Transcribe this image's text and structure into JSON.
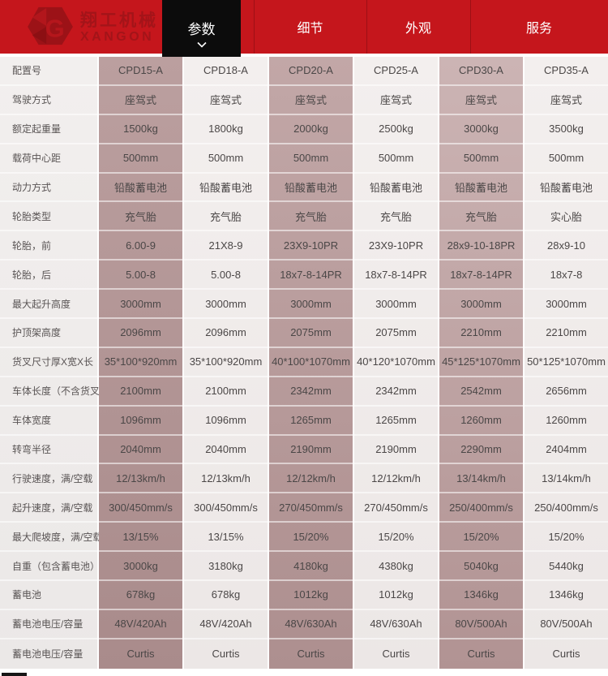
{
  "header": {
    "logo": {
      "brand_cn": "翔工机械",
      "brand_en": "XANGON"
    },
    "tabs": [
      {
        "label": "参数",
        "active": true
      },
      {
        "label": "细节",
        "active": false
      },
      {
        "label": "外观",
        "active": false
      },
      {
        "label": "服务",
        "active": false
      }
    ]
  },
  "colors": {
    "header_red": "#c5161c",
    "header_divider_red": "#9d1015",
    "logo_red": "#a31419",
    "active_tab_black": "#0c0c0c",
    "shaded_column_mauve": "#b29595",
    "light_column": "#f1edec",
    "cell_text": "#4b4747"
  },
  "table": {
    "models": [
      "CPD15-A",
      "CPD18-A",
      "CPD20-A",
      "CPD25-A",
      "CPD30-A",
      "CPD35-A"
    ],
    "rows": [
      {
        "label": "配置号",
        "values": [
          "CPD15-A",
          "CPD18-A",
          "CPD20-A",
          "CPD25-A",
          "CPD30-A",
          "CPD35-A"
        ]
      },
      {
        "label": "驾驶方式",
        "values": [
          "座驾式",
          "座驾式",
          "座驾式",
          "座驾式",
          "座驾式",
          "座驾式"
        ]
      },
      {
        "label": "额定起重量",
        "values": [
          "1500kg",
          "1800kg",
          "2000kg",
          "2500kg",
          "3000kg",
          "3500kg"
        ]
      },
      {
        "label": "载荷中心距",
        "values": [
          "500mm",
          "500mm",
          "500mm",
          "500mm",
          "500mm",
          "500mm"
        ]
      },
      {
        "label": "动力方式",
        "values": [
          "铅酸蓄电池",
          "铅酸蓄电池",
          "铅酸蓄电池",
          "铅酸蓄电池",
          "铅酸蓄电池",
          "铅酸蓄电池"
        ]
      },
      {
        "label": "轮胎类型",
        "values": [
          "充气胎",
          "充气胎",
          "充气胎",
          "充气胎",
          "充气胎",
          "实心胎"
        ]
      },
      {
        "label": "轮胎，前",
        "values": [
          "6.00-9",
          "21X8-9",
          "23X9-10PR",
          "23X9-10PR",
          "28x9-10-18PR",
          "28x9-10"
        ]
      },
      {
        "label": "轮胎，后",
        "values": [
          "5.00-8",
          "5.00-8",
          "18x7-8-14PR",
          "18x7-8-14PR",
          "18x7-8-14PR",
          "18x7-8"
        ]
      },
      {
        "label": "最大起升高度",
        "values": [
          "3000mm",
          "3000mm",
          "3000mm",
          "3000mm",
          "3000mm",
          "3000mm"
        ]
      },
      {
        "label": "护顶架高度",
        "values": [
          "2096mm",
          "2096mm",
          "2075mm",
          "2075mm",
          "2210mm",
          "2210mm"
        ]
      },
      {
        "label": "货叉尺寸厚X宽X长",
        "values": [
          "35*100*920mm",
          "35*100*920mm",
          "40*100*1070mm",
          "40*120*1070mm",
          "45*125*1070mm",
          "50*125*1070mm"
        ]
      },
      {
        "label": "车体长度（不含货叉）",
        "values": [
          "2100mm",
          "2100mm",
          "2342mm",
          "2342mm",
          "2542mm",
          "2656mm"
        ]
      },
      {
        "label": "车体宽度",
        "values": [
          "1096mm",
          "1096mm",
          "1265mm",
          "1265mm",
          "1260mm",
          "1260mm"
        ]
      },
      {
        "label": "转弯半径",
        "values": [
          "2040mm",
          "2040mm",
          "2190mm",
          "2190mm",
          "2290mm",
          "2404mm"
        ]
      },
      {
        "label": "行驶速度，满/空载",
        "values": [
          "12/13km/h",
          "12/13km/h",
          "12/12km/h",
          "12/12km/h",
          "13/14km/h",
          "13/14km/h"
        ]
      },
      {
        "label": "起升速度，满/空载",
        "values": [
          "300/450mm/s",
          "300/450mm/s",
          "270/450mm/s",
          "270/450mm/s",
          "250/400mm/s",
          "250/400mm/s"
        ]
      },
      {
        "label": "最大爬坡度，满/空载",
        "values": [
          "13/15%",
          "13/15%",
          "15/20%",
          "15/20%",
          "15/20%",
          "15/20%"
        ]
      },
      {
        "label": "自重（包含蓄电池）",
        "values": [
          "3000kg",
          "3180kg",
          "4180kg",
          "4380kg",
          "5040kg",
          "5440kg"
        ]
      },
      {
        "label": "蓄电池",
        "values": [
          "678kg",
          "678kg",
          "1012kg",
          "1012kg",
          "1346kg",
          "1346kg"
        ]
      },
      {
        "label": "蓄电池电压/容量",
        "values": [
          "48V/420Ah",
          "48V/420Ah",
          "48V/630Ah",
          "48V/630Ah",
          "80V/500Ah",
          "80V/500Ah"
        ]
      },
      {
        "label": "蓄电池电压/容量",
        "values": [
          "Curtis",
          "Curtis",
          "Curtis",
          "Curtis",
          "Curtis",
          "Curtis"
        ]
      }
    ]
  }
}
